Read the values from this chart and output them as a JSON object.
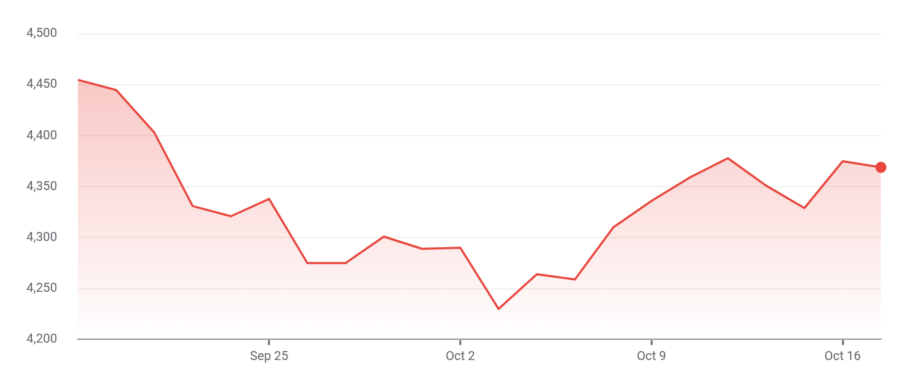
{
  "chart_data": {
    "type": "area",
    "categories": [
      null,
      null,
      null,
      null,
      null,
      "Sep 25",
      null,
      null,
      null,
      null,
      "Oct 2",
      null,
      null,
      null,
      null,
      "Oct 9",
      null,
      null,
      null,
      null,
      "Oct 16",
      null
    ],
    "series": [
      {
        "color": "#e8453c",
        "values": [
          4455,
          4445,
          4403,
          4331,
          4321,
          4338,
          4275,
          4275,
          4301,
          4289,
          4290,
          4230,
          4264,
          4259,
          4310,
          4336,
          4359,
          4378,
          4351,
          4329,
          4375,
          4369
        ]
      }
    ],
    "ylim": [
      4200,
      4500
    ],
    "yticks": [
      {
        "value": 4200,
        "label": "4,200"
      },
      {
        "value": 4250,
        "label": "4,250"
      },
      {
        "value": 4300,
        "label": "4,300"
      },
      {
        "value": 4350,
        "label": "4,350"
      },
      {
        "value": 4400,
        "label": "4,400"
      },
      {
        "value": 4450,
        "label": "4,450"
      },
      {
        "value": 4500,
        "label": "4,500"
      }
    ],
    "grid": "y",
    "legend": false,
    "marker": "none",
    "line_style": "solid"
  }
}
